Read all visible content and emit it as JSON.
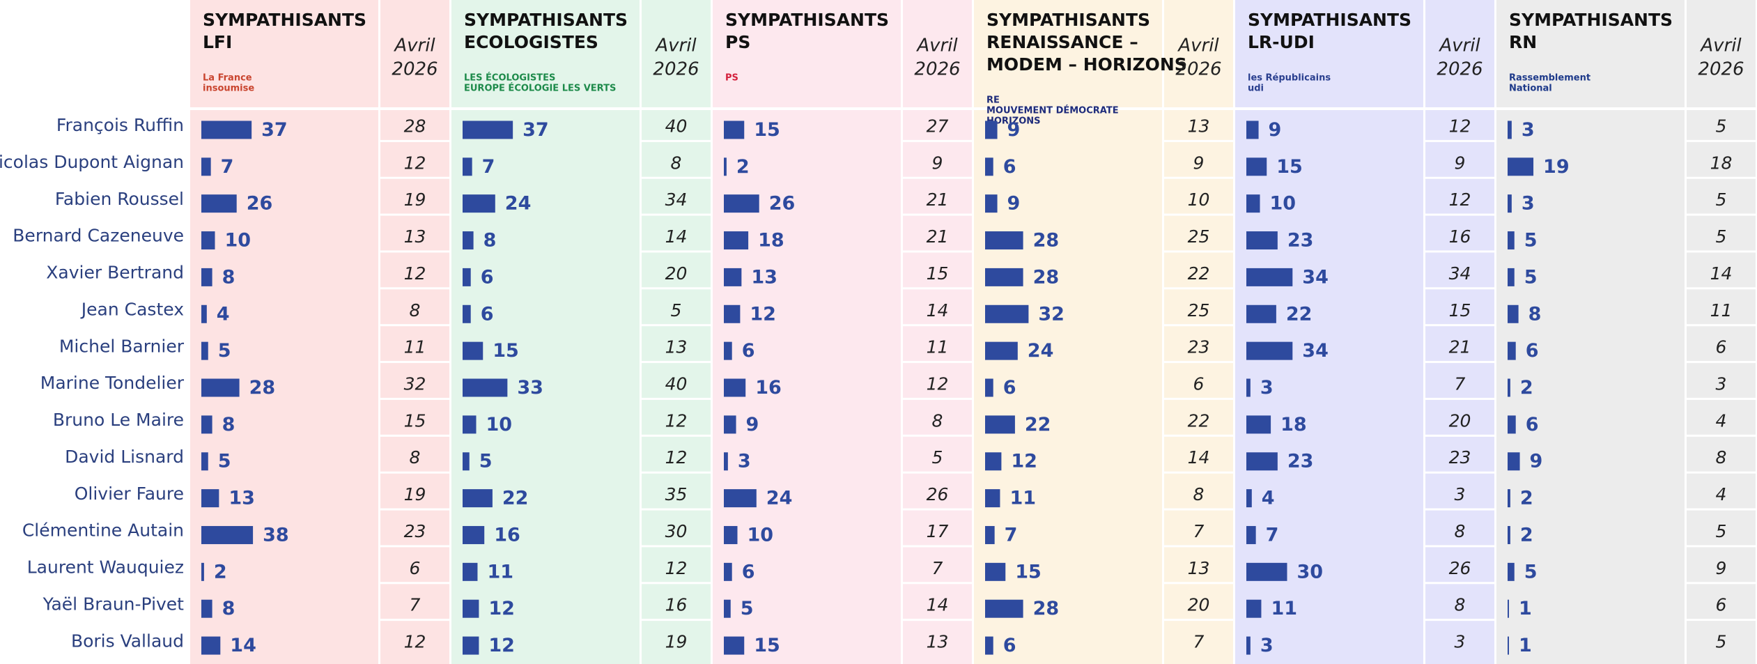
{
  "rows": [
    "François Ruffin",
    "Nicolas Dupont Aignan",
    "Fabien Roussel",
    "Bernard Cazeneuve",
    "Xavier Bertrand",
    "Jean Castex",
    "Michel Barnier",
    "Marine Tondelier",
    "Bruno Le Maire",
    "David Lisnard",
    "Olivier Faure",
    "Clémentine Autain",
    "Laurent Wauquiez",
    "Yaël Braun-Pivet",
    "Boris Vallaud"
  ],
  "bar_color": "#2e4a9e",
  "xlim": [
    0,
    40
  ],
  "groups": [
    {
      "title": [
        "SYMPATHISANTS",
        "LFI"
      ],
      "logo": [
        "La France",
        "insoumise"
      ],
      "logo_color": "#c9452f",
      "color": "#fde3e3",
      "values": [
        37,
        7,
        26,
        10,
        8,
        4,
        5,
        28,
        8,
        5,
        13,
        38,
        2,
        8,
        14
      ],
      "compare_header": [
        "Avril",
        "2026"
      ],
      "compare": [
        28,
        12,
        19,
        13,
        12,
        8,
        11,
        32,
        15,
        8,
        19,
        23,
        6,
        7,
        12
      ]
    },
    {
      "title": [
        "SYMPATHISANTS",
        "ECOLOGISTES"
      ],
      "logo": [
        "LES ÉCOLOGISTES",
        "EUROPE ÉCOLOGIE LES VERTS"
      ],
      "logo_color": "#1d8a4a",
      "color": "#e3f5ea",
      "values": [
        37,
        7,
        24,
        8,
        6,
        6,
        15,
        33,
        10,
        5,
        22,
        16,
        11,
        12,
        12
      ],
      "compare_header": [
        "Avril",
        "2026"
      ],
      "compare": [
        40,
        8,
        34,
        14,
        20,
        5,
        13,
        40,
        12,
        12,
        35,
        30,
        12,
        16,
        19
      ]
    },
    {
      "title": [
        "SYMPATHISANTS",
        "PS"
      ],
      "logo": [
        "PS"
      ],
      "logo_color": "#d4213d",
      "color": "#fde8ee",
      "values": [
        15,
        2,
        26,
        18,
        13,
        12,
        6,
        16,
        9,
        3,
        24,
        10,
        6,
        5,
        15
      ],
      "compare_header": [
        "Avril",
        "2026"
      ],
      "compare": [
        27,
        9,
        21,
        21,
        15,
        14,
        11,
        12,
        8,
        5,
        26,
        17,
        7,
        14,
        13
      ]
    },
    {
      "title": [
        "SYMPATHISANTS",
        "RENAISSANCE – ",
        "MODEM – HORIZONS"
      ],
      "logo": [
        "RE",
        "MOUVEMENT DÉMOCRATE",
        "HORIZONS"
      ],
      "logo_color": "#1e2b7a",
      "color": "#fdf3e1",
      "values": [
        9,
        6,
        9,
        28,
        28,
        32,
        24,
        6,
        22,
        12,
        11,
        7,
        15,
        28,
        6
      ],
      "compare_header": [
        "Avril",
        "2026"
      ],
      "compare": [
        13,
        9,
        10,
        25,
        22,
        25,
        23,
        6,
        22,
        14,
        8,
        7,
        13,
        20,
        7
      ]
    },
    {
      "title": [
        "SYMPATHISANTS",
        "LR-UDI"
      ],
      "logo": [
        "les Républicains",
        "udi"
      ],
      "logo_color": "#2a3f8f",
      "color": "#e3e3fb",
      "values": [
        9,
        15,
        10,
        23,
        34,
        22,
        34,
        3,
        18,
        23,
        4,
        7,
        30,
        11,
        3
      ],
      "compare_header": [
        "Avril",
        "2026"
      ],
      "compare": [
        12,
        9,
        12,
        16,
        34,
        15,
        21,
        7,
        20,
        23,
        3,
        8,
        26,
        8,
        3
      ]
    },
    {
      "title": [
        "SYMPATHISANTS",
        "RN"
      ],
      "logo": [
        "Rassemblement",
        "National"
      ],
      "logo_color": "#1e3a8a",
      "color": "#ececec",
      "values": [
        3,
        19,
        3,
        5,
        5,
        8,
        6,
        2,
        6,
        9,
        2,
        2,
        5,
        1,
        1
      ],
      "compare_header": [
        "Avril",
        "2026"
      ],
      "compare": [
        5,
        18,
        5,
        5,
        14,
        11,
        6,
        3,
        4,
        8,
        4,
        5,
        9,
        6,
        5
      ]
    }
  ]
}
